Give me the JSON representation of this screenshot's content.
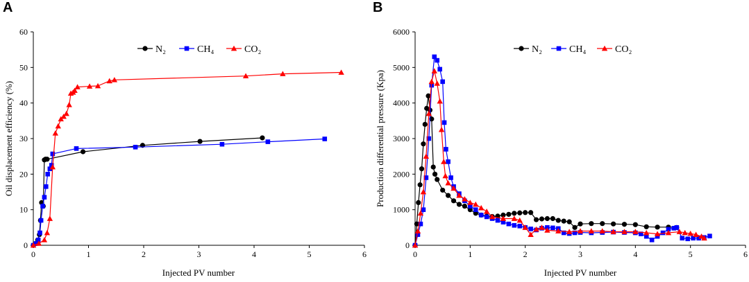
{
  "colors": {
    "N2": "#000000",
    "CH4": "#0000ff",
    "CO2": "#ff0000"
  },
  "chart_data": [
    {
      "panel": "A",
      "type": "line",
      "title": "",
      "xlabel": "Injected PV number",
      "ylabel": "Oil displacement efficiency (%)",
      "xlim": [
        0,
        6
      ],
      "ylim": [
        0,
        60
      ],
      "xticks": [
        0,
        1,
        2,
        3,
        4,
        5,
        6
      ],
      "yticks": [
        0,
        10,
        20,
        30,
        40,
        50,
        60
      ],
      "legend_position": "top-center",
      "series": [
        {
          "name": "N₂",
          "key": "N2",
          "marker": "circle",
          "x": [
            0,
            0.05,
            0.08,
            0.11,
            0.13,
            0.15,
            0.18,
            0.2,
            0.22,
            0.25,
            0.9,
            1.98,
            3.02,
            4.15
          ],
          "y": [
            0,
            0.5,
            1.5,
            3,
            7,
            12,
            11,
            24,
            24.2,
            24.2,
            26.3,
            28.1,
            29.2,
            30.2
          ]
        },
        {
          "name": "CH₄",
          "key": "CH4",
          "marker": "square",
          "x": [
            0,
            0.05,
            0.09,
            0.12,
            0.14,
            0.17,
            0.2,
            0.23,
            0.26,
            0.3,
            0.33,
            0.35,
            0.78,
            1.85,
            3.42,
            4.25,
            5.28
          ],
          "y": [
            0,
            0.5,
            1.5,
            3.5,
            7,
            11,
            13.5,
            16.5,
            20,
            21.5,
            22.5,
            25.7,
            27.2,
            27.6,
            28.4,
            29.1,
            29.9
          ]
        },
        {
          "name": "CO₂",
          "key": "CO2",
          "marker": "triangle",
          "x": [
            0,
            0.1,
            0.2,
            0.25,
            0.3,
            0.35,
            0.4,
            0.45,
            0.5,
            0.55,
            0.6,
            0.65,
            0.68,
            0.72,
            0.75,
            0.8,
            1.02,
            1.17,
            1.38,
            1.47,
            3.85,
            4.52,
            5.58
          ],
          "y": [
            0,
            0.5,
            1.5,
            3.5,
            7.5,
            22,
            31.5,
            33.5,
            35.5,
            36.2,
            37,
            39.5,
            42.7,
            43,
            43.5,
            44.5,
            44.7,
            44.8,
            46.2,
            46.5,
            47.6,
            48.2,
            48.6
          ]
        }
      ]
    },
    {
      "panel": "B",
      "type": "line",
      "title": "",
      "xlabel": "Injected PV number",
      "ylabel": "Production differential pressure (Kpa)",
      "xlim": [
        0,
        6
      ],
      "ylim": [
        0,
        6000
      ],
      "xticks": [
        0,
        1,
        2,
        3,
        4,
        5,
        6
      ],
      "yticks": [
        0,
        1000,
        2000,
        3000,
        4000,
        5000,
        6000
      ],
      "legend_position": "top-center",
      "series": [
        {
          "name": "N₂",
          "key": "N2",
          "marker": "circle",
          "x": [
            0,
            0.03,
            0.06,
            0.09,
            0.12,
            0.15,
            0.18,
            0.21,
            0.24,
            0.27,
            0.3,
            0.33,
            0.36,
            0.4,
            0.5,
            0.6,
            0.7,
            0.8,
            0.9,
            1.0,
            1.1,
            1.2,
            1.3,
            1.4,
            1.5,
            1.6,
            1.7,
            1.8,
            1.9,
            2.0,
            2.1,
            2.2,
            2.3,
            2.4,
            2.5,
            2.6,
            2.7,
            2.8,
            2.9,
            3.0,
            3.2,
            3.4,
            3.6,
            3.8,
            4.0,
            4.2,
            4.4,
            4.6,
            4.75
          ],
          "y": [
            0,
            600,
            1200,
            1700,
            2150,
            2850,
            3400,
            3850,
            4200,
            3800,
            3550,
            2200,
            2000,
            1850,
            1550,
            1400,
            1250,
            1150,
            1100,
            1000,
            900,
            850,
            820,
            810,
            820,
            850,
            870,
            900,
            910,
            920,
            920,
            720,
            740,
            750,
            750,
            700,
            680,
            660,
            500,
            600,
            610,
            610,
            600,
            590,
            580,
            520,
            510,
            510,
            500
          ]
        },
        {
          "name": "CH₄",
          "key": "CH4",
          "marker": "square",
          "x": [
            0,
            0.05,
            0.1,
            0.15,
            0.2,
            0.25,
            0.3,
            0.35,
            0.4,
            0.45,
            0.5,
            0.53,
            0.56,
            0.6,
            0.65,
            0.7,
            0.8,
            0.9,
            1.0,
            1.1,
            1.2,
            1.3,
            1.4,
            1.5,
            1.6,
            1.7,
            1.8,
            1.9,
            2.0,
            2.1,
            2.2,
            2.3,
            2.4,
            2.5,
            2.6,
            2.7,
            2.8,
            2.9,
            3.0,
            3.2,
            3.4,
            3.6,
            3.8,
            4.0,
            4.1,
            4.2,
            4.3,
            4.4,
            4.5,
            4.6,
            4.7,
            4.75,
            4.85,
            4.95,
            5.05,
            5.15,
            5.25,
            5.35
          ],
          "y": [
            0,
            300,
            600,
            1000,
            1900,
            3000,
            4500,
            5300,
            5200,
            4950,
            4600,
            3450,
            2700,
            2350,
            1900,
            1650,
            1450,
            1250,
            1100,
            1000,
            850,
            800,
            750,
            700,
            650,
            600,
            560,
            540,
            500,
            460,
            430,
            480,
            500,
            490,
            470,
            350,
            330,
            350,
            360,
            350,
            360,
            370,
            360,
            350,
            320,
            250,
            150,
            250,
            350,
            450,
            480,
            500,
            200,
            180,
            200,
            200,
            220,
            260
          ]
        },
        {
          "name": "CO₂",
          "key": "CO2",
          "marker": "triangle",
          "x": [
            0,
            0.05,
            0.1,
            0.15,
            0.2,
            0.25,
            0.3,
            0.35,
            0.4,
            0.45,
            0.48,
            0.52,
            0.55,
            0.6,
            0.7,
            0.8,
            0.9,
            1.0,
            1.1,
            1.2,
            1.3,
            1.4,
            1.6,
            1.8,
            1.9,
            2.0,
            2.1,
            2.2,
            2.3,
            2.4,
            2.6,
            2.8,
            3.0,
            3.2,
            3.4,
            3.6,
            3.8,
            4.0,
            4.2,
            4.4,
            4.6,
            4.8,
            4.9,
            5.0,
            5.1,
            5.2,
            5.25
          ],
          "y": [
            0,
            400,
            900,
            1500,
            2500,
            3700,
            4600,
            4900,
            4550,
            4050,
            3250,
            2350,
            1950,
            1750,
            1600,
            1400,
            1300,
            1200,
            1150,
            1050,
            950,
            800,
            750,
            750,
            700,
            500,
            300,
            450,
            500,
            420,
            400,
            380,
            400,
            400,
            400,
            380,
            380,
            380,
            350,
            320,
            350,
            380,
            350,
            330,
            300,
            250,
            200
          ]
        }
      ]
    }
  ]
}
